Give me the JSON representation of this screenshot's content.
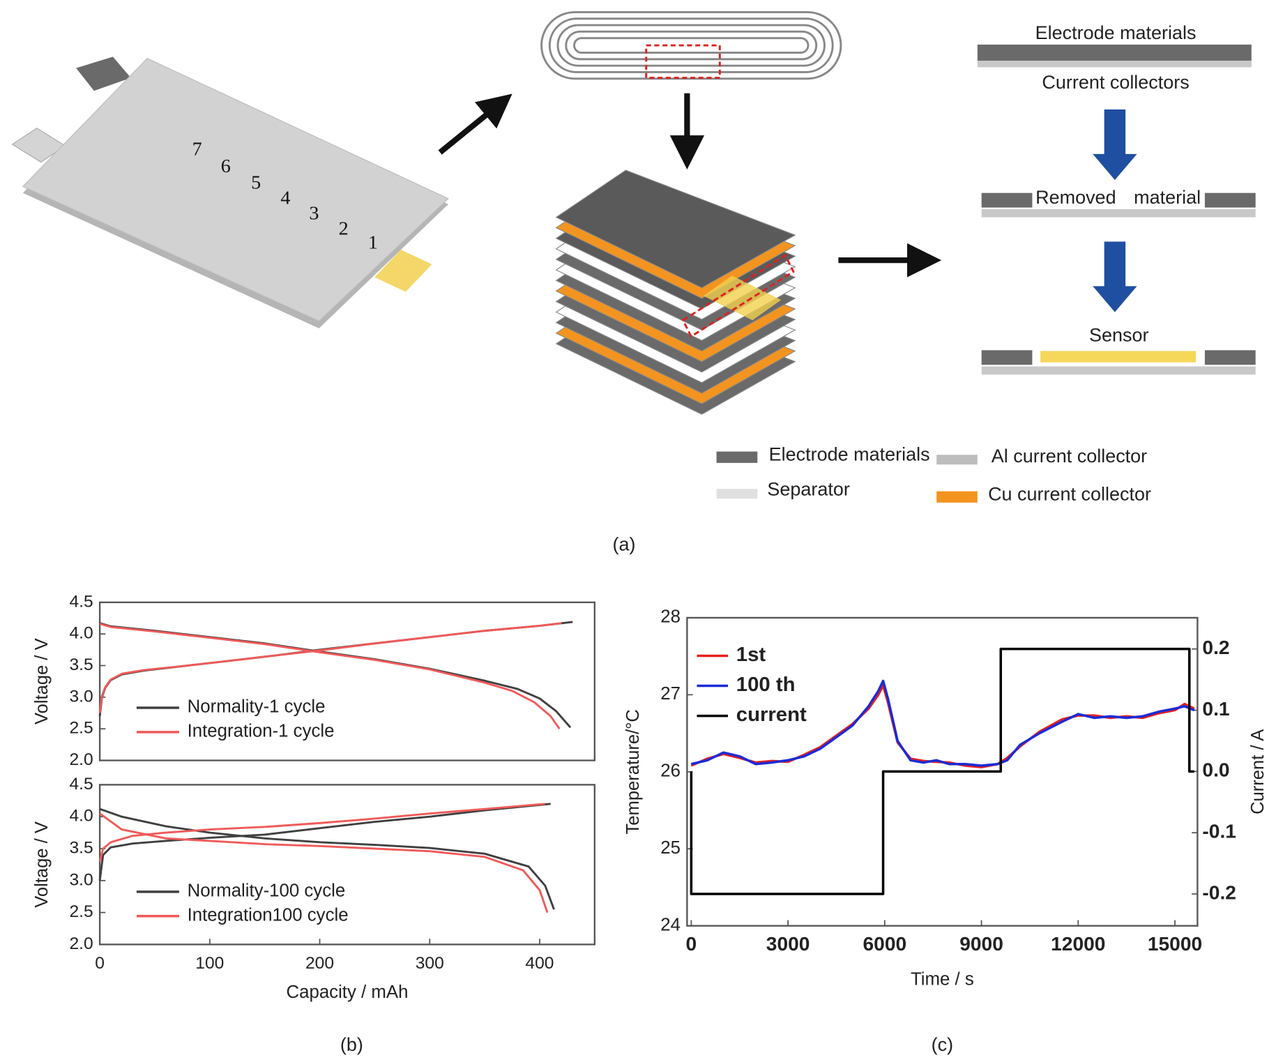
{
  "diagram": {
    "cell_numbers": [
      "7",
      "6",
      "5",
      "4",
      "3",
      "2",
      "1"
    ],
    "layer_top": "Electrode materials",
    "layer_bottom": "Current collectors",
    "removed_left": "Removed",
    "removed_right": "material",
    "sensor": "Sensor",
    "legend": {
      "electrode": "Electrode materials",
      "al": "Al current collector",
      "separator": "Separator",
      "cu": "Cu current collector"
    },
    "captions": [
      "(a)",
      "(b)",
      "(c)"
    ]
  },
  "chart_data": [
    {
      "type": "line",
      "ylabel": "Voltage / V",
      "xlim": [
        0,
        450
      ],
      "ylim": [
        2,
        4.5
      ],
      "yticks": [
        {
          "value": 2,
          "label": "2.0"
        },
        2.5,
        {
          "value": 3,
          "label": "3.0"
        },
        3.5,
        {
          "value": 4,
          "label": "4.0"
        },
        4.5
      ],
      "legend": "lower left",
      "series": [
        {
          "name": "Normality-1 cycle",
          "color": "#404040",
          "x": [
            0,
            2,
            5,
            10,
            20,
            40,
            80,
            120,
            160,
            200,
            250,
            300,
            350,
            400,
            430,
            null,
            0,
            10,
            50,
            100,
            150,
            200,
            250,
            300,
            350,
            380,
            400,
            415,
            428
          ],
          "values": [
            2.7,
            3.0,
            3.15,
            3.27,
            3.36,
            3.42,
            3.5,
            3.58,
            3.66,
            3.75,
            3.85,
            3.95,
            4.05,
            4.13,
            4.19,
            null,
            4.17,
            4.12,
            4.05,
            3.95,
            3.85,
            3.72,
            3.6,
            3.45,
            3.26,
            3.13,
            2.98,
            2.78,
            2.52
          ]
        },
        {
          "name": "Integration-1 cycle",
          "color": "#f05a5a",
          "x": [
            0,
            2,
            5,
            10,
            20,
            40,
            80,
            120,
            160,
            200,
            250,
            300,
            350,
            400,
            420,
            null,
            0,
            10,
            50,
            100,
            150,
            200,
            250,
            300,
            350,
            375,
            395,
            410,
            418
          ],
          "values": [
            2.75,
            3.02,
            3.16,
            3.28,
            3.37,
            3.43,
            3.5,
            3.58,
            3.66,
            3.74,
            3.85,
            3.95,
            4.05,
            4.13,
            4.17,
            null,
            4.16,
            4.11,
            4.04,
            3.94,
            3.84,
            3.71,
            3.59,
            3.44,
            3.23,
            3.1,
            2.92,
            2.7,
            2.5
          ]
        }
      ]
    },
    {
      "type": "line",
      "xlabel": "Capacity / mAh",
      "ylabel": "Voltage / V",
      "xlim": [
        0,
        450
      ],
      "xticks": [
        0,
        100,
        200,
        300,
        400
      ],
      "ylim": [
        2,
        4.5
      ],
      "yticks": [
        {
          "value": 2,
          "label": "2.0"
        },
        2.5,
        {
          "value": 3,
          "label": "3.0"
        },
        3.5,
        {
          "value": 4,
          "label": "4.0"
        },
        4.5
      ],
      "legend": "lower left",
      "series": [
        {
          "name": "Normality-100 cycle",
          "color": "#404040",
          "x": [
            0,
            3,
            10,
            30,
            60,
            100,
            150,
            200,
            250,
            300,
            350,
            410,
            null,
            0,
            20,
            60,
            100,
            150,
            200,
            250,
            300,
            350,
            390,
            405,
            413
          ],
          "values": [
            3.0,
            3.4,
            3.52,
            3.58,
            3.62,
            3.67,
            3.72,
            3.82,
            3.92,
            4.0,
            4.1,
            4.2,
            null,
            4.12,
            4.0,
            3.85,
            3.75,
            3.66,
            3.6,
            3.56,
            3.51,
            3.42,
            3.22,
            2.92,
            2.55
          ]
        },
        {
          "name": "Integration100 cycle",
          "color": "#f05a5a",
          "x": [
            0,
            3,
            10,
            30,
            60,
            100,
            150,
            200,
            250,
            300,
            350,
            405,
            null,
            0,
            20,
            60,
            100,
            150,
            200,
            250,
            300,
            350,
            385,
            400,
            407
          ],
          "values": [
            3.3,
            3.5,
            3.6,
            3.7,
            3.75,
            3.8,
            3.84,
            3.9,
            3.97,
            4.05,
            4.12,
            4.2,
            null,
            4.05,
            3.8,
            3.66,
            3.62,
            3.57,
            3.54,
            3.5,
            3.46,
            3.37,
            3.16,
            2.85,
            2.5
          ]
        }
      ]
    },
    {
      "type": "line",
      "xlabel": "Time / s",
      "ylabel": "Temperature/°C",
      "y2label": "Current / A",
      "y_axis_color": "#6a6ae0",
      "xlim": [
        -130,
        15700
      ],
      "xticks": [
        0,
        3000,
        6000,
        9000,
        12000,
        15000
      ],
      "ylim": [
        24,
        28
      ],
      "yticks": [
        24,
        25,
        26,
        27,
        28
      ],
      "y2lim": [
        -0.252,
        0.251
      ],
      "y2ticks": [
        -0.2,
        -0.1,
        {
          "value": 0,
          "label": "0.0"
        },
        0.1,
        0.2
      ],
      "legend": "upper left",
      "series": [
        {
          "name": "1st",
          "color": "#e82020",
          "x": [
            0,
            500,
            1000,
            1500,
            2000,
            2500,
            3000,
            3500,
            4000,
            4500,
            5000,
            5500,
            5800,
            5950,
            6100,
            6400,
            6800,
            7200,
            7600,
            8000,
            8500,
            9000,
            9500,
            9800,
            10200,
            10800,
            11500,
            12000,
            12500,
            13000,
            13500,
            14000,
            14500,
            15000,
            15300,
            15600
          ],
          "values": [
            26.08,
            26.17,
            26.23,
            26.18,
            26.12,
            26.14,
            26.13,
            26.22,
            26.32,
            26.47,
            26.62,
            26.82,
            27.0,
            27.12,
            26.9,
            26.38,
            26.17,
            26.14,
            26.13,
            26.12,
            26.08,
            26.06,
            26.1,
            26.18,
            26.33,
            26.52,
            26.68,
            26.73,
            26.73,
            26.7,
            26.72,
            26.7,
            26.76,
            26.8,
            26.88,
            26.82
          ]
        },
        {
          "name": "100 th",
          "color": "#1a2bd6",
          "x": [
            0,
            500,
            1000,
            1500,
            2000,
            2500,
            3000,
            3500,
            4000,
            4500,
            5000,
            5500,
            5800,
            5950,
            6100,
            6400,
            6800,
            7200,
            7600,
            8000,
            8500,
            9000,
            9500,
            9800,
            10200,
            10800,
            11500,
            12000,
            12500,
            13000,
            13500,
            14000,
            14500,
            15000,
            15300,
            15600
          ],
          "values": [
            26.1,
            26.15,
            26.25,
            26.2,
            26.1,
            26.12,
            26.15,
            26.2,
            26.3,
            26.45,
            26.6,
            26.85,
            27.05,
            27.18,
            26.95,
            26.4,
            26.15,
            26.12,
            26.15,
            26.1,
            26.1,
            26.08,
            26.1,
            26.15,
            26.35,
            26.5,
            26.65,
            26.75,
            26.7,
            26.72,
            26.7,
            26.72,
            26.78,
            26.82,
            26.85,
            26.8
          ]
        },
        {
          "name": "current",
          "color": "#000000",
          "axis": "y2",
          "x": [
            0,
            0,
            5950,
            5950,
            9600,
            9600,
            15450,
            15450,
            15600
          ],
          "values": [
            0,
            -0.2,
            -0.2,
            0,
            0,
            0.2,
            0.2,
            0,
            0
          ]
        }
      ]
    }
  ]
}
